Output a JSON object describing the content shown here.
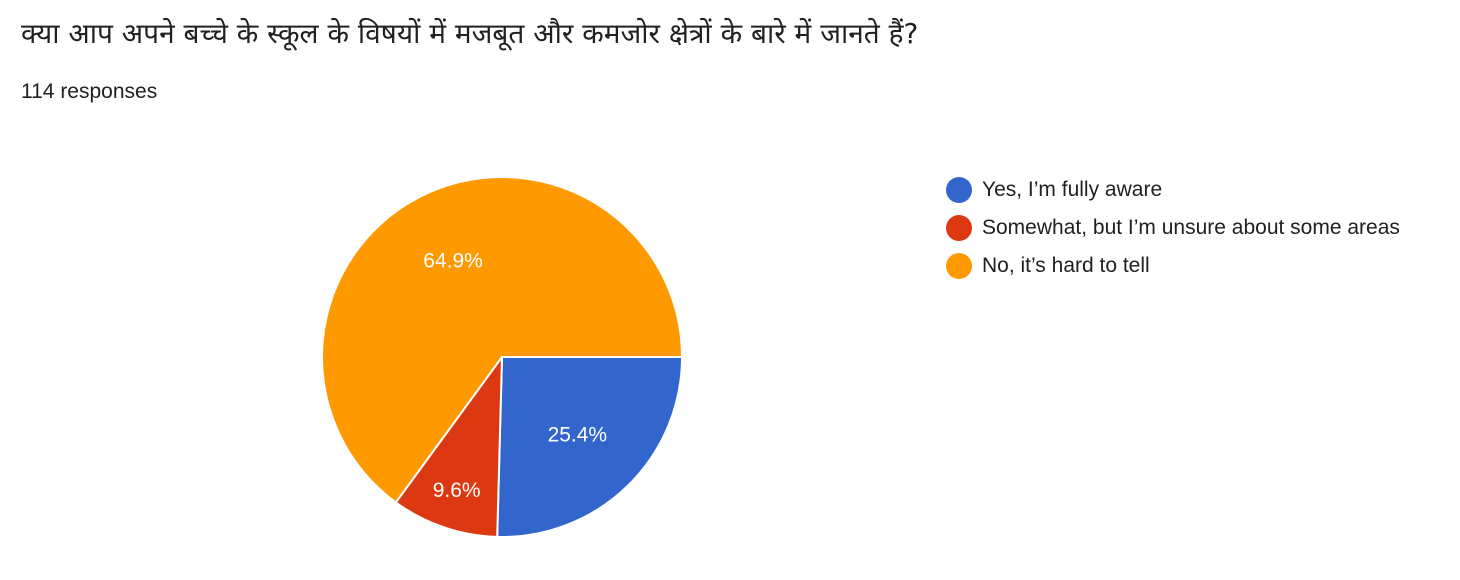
{
  "question": {
    "title": "क्या आप अपने बच्चे के स्कूल के विषयों में मजबूत और कमजोर क्षेत्रों के बारे में जानते हैं?",
    "responses": "114 responses"
  },
  "colors": {
    "yes": "#3366cc",
    "somewhat": "#dc3912",
    "no": "#ff9900"
  },
  "chart_data": {
    "type": "pie",
    "categories": [
      "Yes, I’m fully aware",
      "Somewhat, but I’m unsure about some areas",
      "No, it’s hard to tell"
    ],
    "values": [
      25.4,
      9.6,
      64.9
    ],
    "labels": [
      "25.4%",
      "9.6%",
      "64.9%"
    ],
    "colors": [
      "#3366cc",
      "#dc3912",
      "#ff9900"
    ],
    "start": "3 o'clock, clockwise",
    "legend": "right"
  }
}
